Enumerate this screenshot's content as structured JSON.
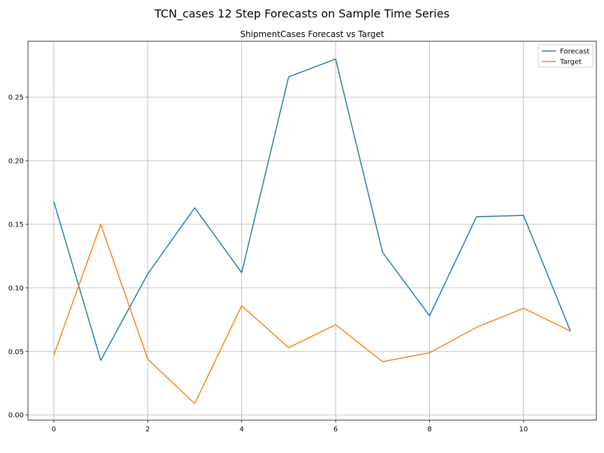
{
  "chart_data": {
    "type": "line",
    "suptitle": "TCN_cases 12 Step Forecasts on Sample Time Series",
    "title": "ShipmentCases Forecast vs Target",
    "xlabel": "",
    "ylabel": "",
    "x": [
      0,
      1,
      2,
      3,
      4,
      5,
      6,
      7,
      8,
      9,
      10,
      11
    ],
    "xlim": [
      -0.55,
      11.55
    ],
    "ylim": [
      -0.004,
      0.294
    ],
    "xticks": [
      0,
      2,
      4,
      6,
      8,
      10
    ],
    "xtick_labels": [
      "0",
      "2",
      "4",
      "6",
      "8",
      "10"
    ],
    "yticks": [
      0.0,
      0.05,
      0.1,
      0.15,
      0.2,
      0.25
    ],
    "ytick_labels": [
      "0.00",
      "0.05",
      "0.10",
      "0.15",
      "0.20",
      "0.25"
    ],
    "grid": true,
    "legend_position": "top-right",
    "series": [
      {
        "name": "Forecast",
        "color": "#1f77b4",
        "values": [
          0.168,
          0.043,
          0.111,
          0.163,
          0.112,
          0.266,
          0.28,
          0.128,
          0.078,
          0.156,
          0.157,
          0.066
        ]
      },
      {
        "name": "Target",
        "color": "#ff7f0e",
        "values": [
          0.047,
          0.15,
          0.044,
          0.009,
          0.086,
          0.053,
          0.071,
          0.042,
          0.049,
          0.069,
          0.084,
          0.066
        ]
      }
    ]
  }
}
